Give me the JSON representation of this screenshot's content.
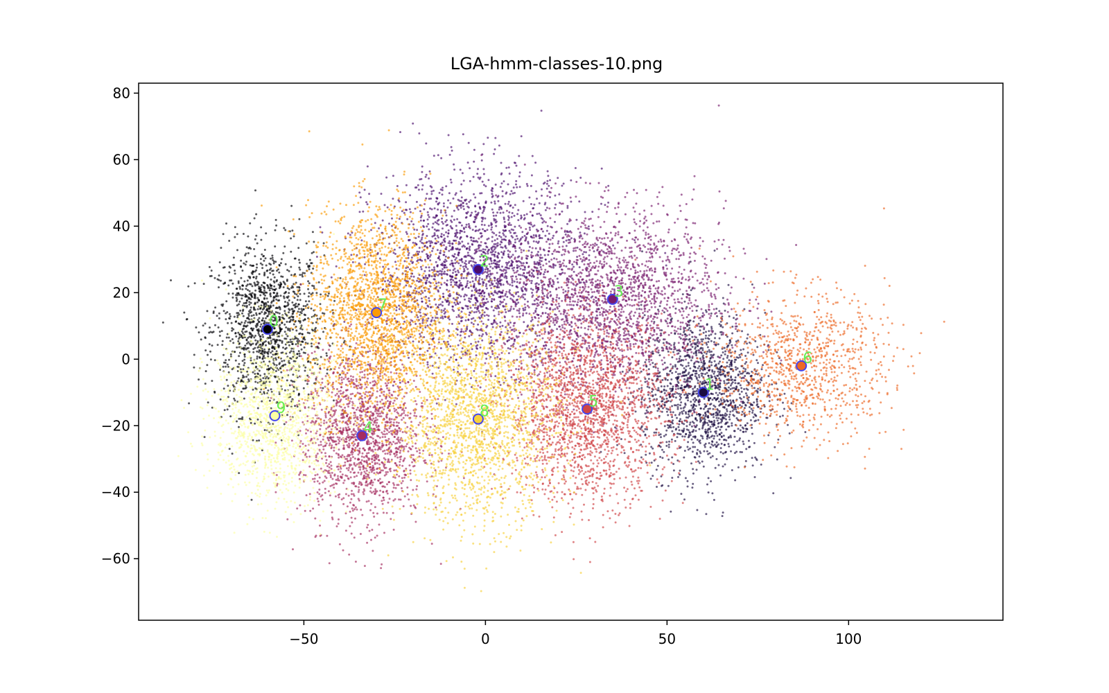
{
  "chart_data": {
    "type": "scatter",
    "title": "LGA-hmm-classes-10.png",
    "xlabel": "",
    "ylabel": "",
    "xlim": [
      -95.5,
      142.5
    ],
    "ylim": [
      -78.5,
      83
    ],
    "x_ticks": [
      -50,
      0,
      50,
      100
    ],
    "x_tick_labels": [
      "−50",
      "0",
      "50",
      "100"
    ],
    "y_ticks": [
      -60,
      -40,
      -20,
      0,
      20,
      40,
      60,
      80
    ],
    "y_tick_labels": [
      "−60",
      "−40",
      "−20",
      "0",
      "20",
      "40",
      "60",
      "80"
    ],
    "grid": false,
    "legend": "none",
    "clusters": [
      {
        "label": "0",
        "center": [
          -60,
          9
        ],
        "color": "#000004",
        "spread": [
          9,
          15
        ],
        "count": 1400
      },
      {
        "label": "1",
        "center": [
          60,
          -10
        ],
        "color": "#1b0c41",
        "spread": [
          10,
          14
        ],
        "count": 1500
      },
      {
        "label": "2",
        "center": [
          -2,
          27
        ],
        "color": "#4a0c6b",
        "spread": [
          17,
          17
        ],
        "count": 2200
      },
      {
        "label": "3",
        "center": [
          35,
          18
        ],
        "color": "#781c6d",
        "spread": [
          18,
          16
        ],
        "count": 2000
      },
      {
        "label": "4",
        "center": [
          -34,
          -23
        ],
        "color": "#a52c60",
        "spread": [
          10,
          15
        ],
        "count": 1600
      },
      {
        "label": "5",
        "center": [
          28,
          -15
        ],
        "color": "#cf4446",
        "spread": [
          13,
          16
        ],
        "count": 2000
      },
      {
        "label": "6",
        "center": [
          87,
          -2
        ],
        "color": "#ed6925",
        "spread": [
          14,
          13
        ],
        "count": 1000
      },
      {
        "label": "7",
        "center": [
          -30,
          14
        ],
        "color": "#fb9b06",
        "spread": [
          11,
          18
        ],
        "count": 2000
      },
      {
        "label": "8",
        "center": [
          -2,
          -18
        ],
        "color": "#f7d13d",
        "spread": [
          13,
          18
        ],
        "count": 2000
      },
      {
        "label": "9",
        "center": [
          -58,
          -17
        ],
        "color": "#fcffa4",
        "spread": [
          10,
          15
        ],
        "count": 1400
      }
    ],
    "centroid_marker_color": "#4444ee"
  }
}
